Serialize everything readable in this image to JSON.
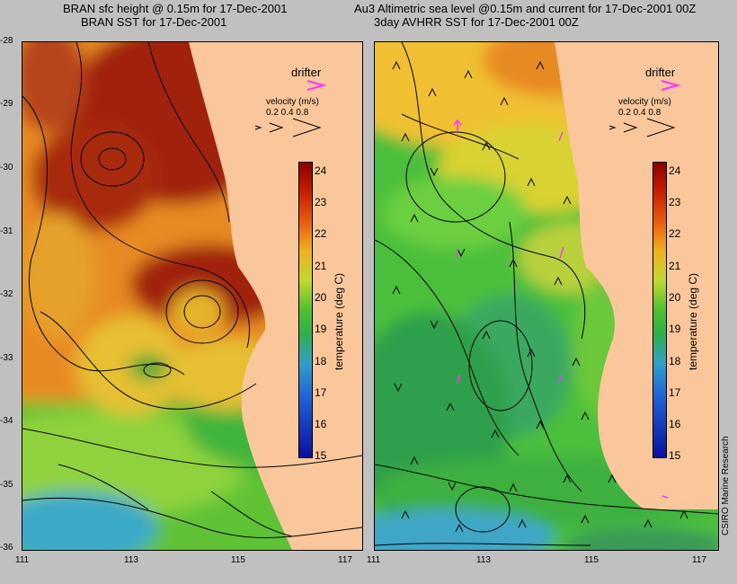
{
  "left": {
    "title_line1": "BRAN sfc height @ 0.15m for 17-Dec-2001",
    "title_line2": "BRAN SST for 17-Dec-2001"
  },
  "right": {
    "title_line1": "Au3 Altimetric sea level  @0.15m and current for 17-Dec-2001 00Z",
    "title_line2": "3day AVHRR SST for 17-Dec-2001 00Z"
  },
  "legend": {
    "drifter_label": "drifter",
    "velocity_label": "velocity (m/s)",
    "velocity_values": "0.2 0.4 0.8"
  },
  "colorbar": {
    "label": "temperature (deg C)",
    "ticks": [
      "24",
      "23",
      "22",
      "21",
      "20",
      "19",
      "18",
      "17",
      "16",
      "15"
    ]
  },
  "axes": {
    "lat_labels": [
      "-28",
      "-29",
      "-30",
      "-31",
      "-32",
      "-33",
      "-34",
      "-35",
      "-36"
    ],
    "lon_labels": [
      "111",
      "113",
      "115",
      "117"
    ]
  },
  "credit": "CSIRO Marine Research",
  "colors": {
    "land": "#fac79c",
    "drifter": "#ff33ff",
    "background": "#c0c0c0"
  }
}
